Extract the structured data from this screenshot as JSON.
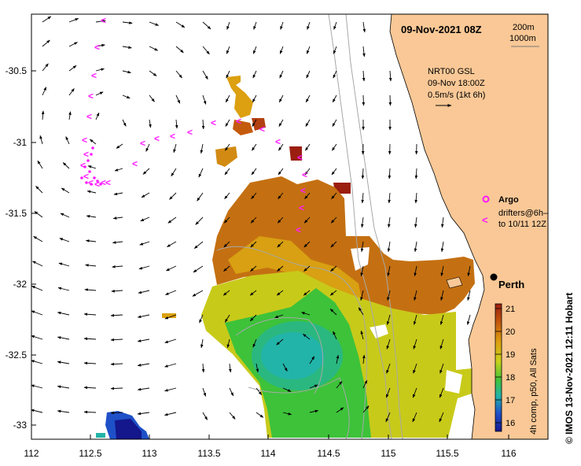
{
  "header": {
    "timestamp": "09-Nov-2021 08Z"
  },
  "bathymetry_legend": {
    "contour_1": "200m",
    "contour_2": "1000m"
  },
  "currents_info": {
    "model": "NRT00 GSL",
    "time": "09-Nov 18:00Z",
    "scale": "0.5m/s (1kt 6h)"
  },
  "legend": {
    "argo": "Argo",
    "drifters_line1": "drifters@6h–",
    "drifters_line2": "to 10/11 12Z"
  },
  "city": {
    "name": "Perth"
  },
  "colorbar": {
    "ticks": [
      "21",
      "20",
      "19",
      "18",
      "17",
      "16"
    ],
    "label": "4h comp, p50, All Sats",
    "colors": [
      "#9b1e10",
      "#c45a0c",
      "#dca010",
      "#c8d21a",
      "#3dc23a",
      "#22b4a8",
      "#1e50c8",
      "#14168c"
    ]
  },
  "credit": "©  IMOS 13-Nov-2021 12:11 Hobart",
  "axes": {
    "x_ticks": [
      "112",
      "112.5",
      "113",
      "113.5",
      "114",
      "114.5",
      "115",
      "115.5",
      "116"
    ],
    "y_ticks": [
      "-30.5",
      "-31",
      "-31.5",
      "-32",
      "-32.5",
      "-33"
    ]
  },
  "map_data": {
    "lon_range": [
      112,
      116.3
    ],
    "lat_range": [
      -33.1,
      -30.1
    ],
    "perth": {
      "lon": 115.86,
      "lat": -31.95
    }
  },
  "colors": {
    "land": "#f9c896",
    "arrow": "#000000",
    "drifter": "#ff1aff"
  }
}
